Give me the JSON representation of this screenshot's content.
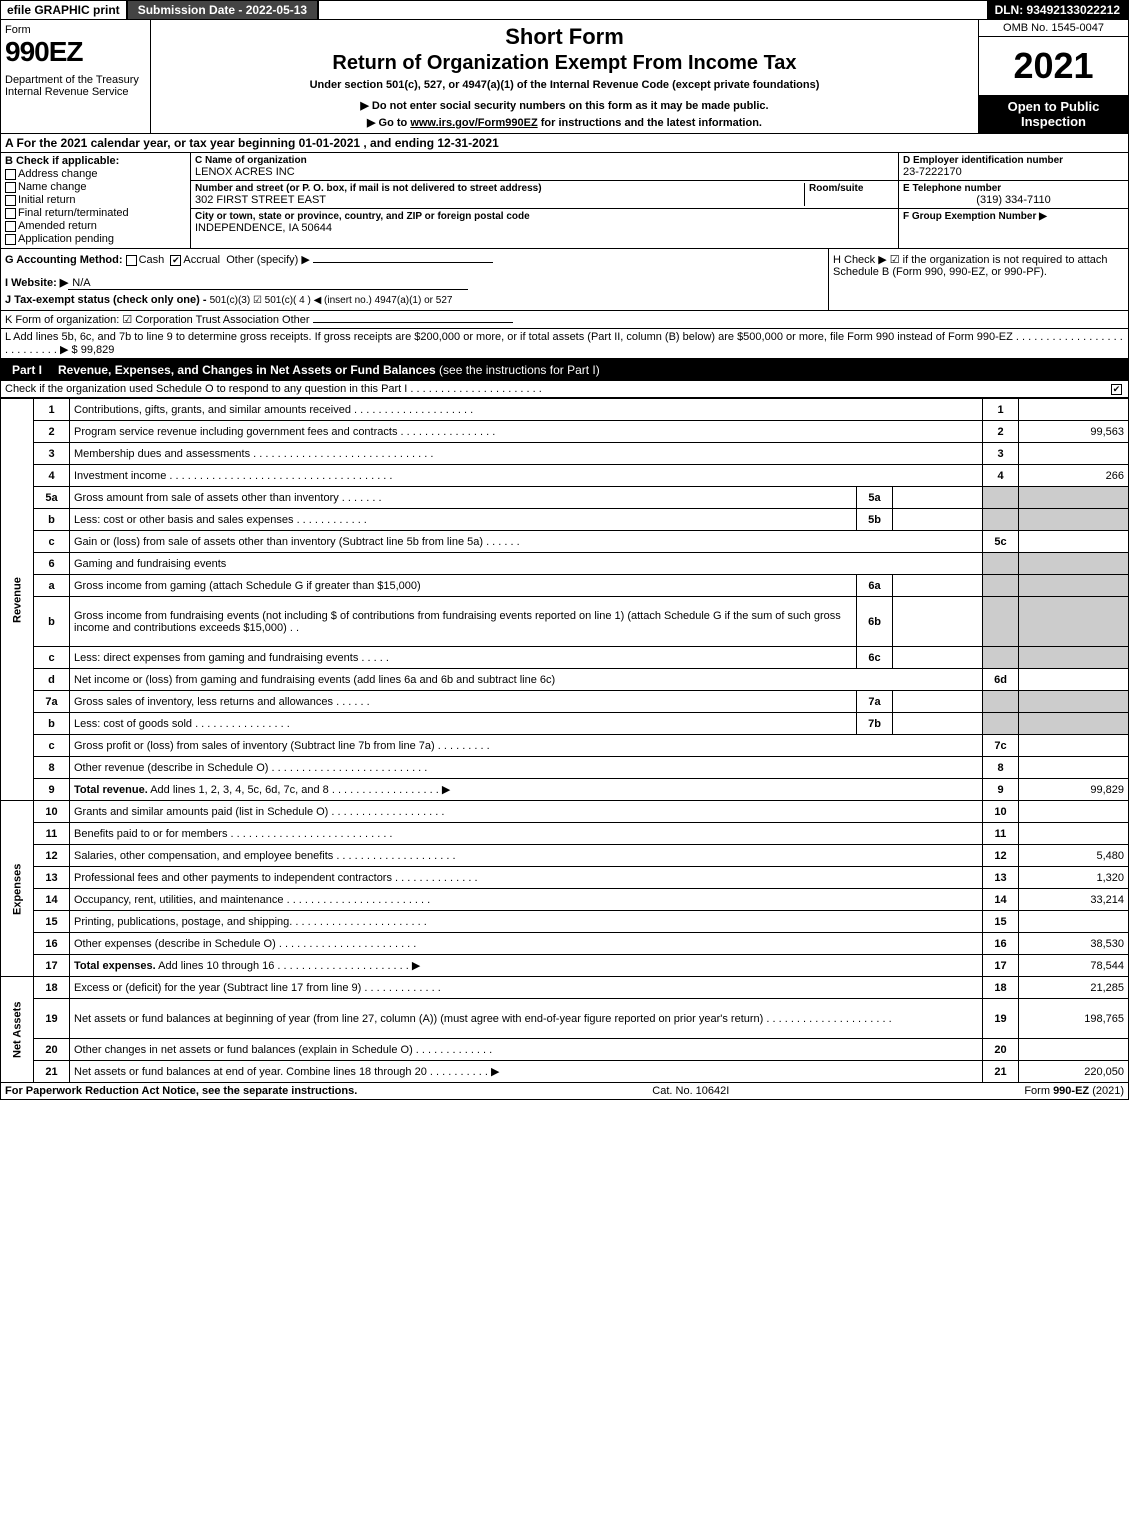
{
  "topbar": {
    "efile": "efile GRAPHIC print",
    "subdate": "Submission Date - 2022-05-13",
    "dln": "DLN: 93492133022212"
  },
  "header": {
    "form_label": "Form",
    "form_no": "990EZ",
    "dept": "Department of the Treasury\nInternal Revenue Service",
    "shortform": "Short Form",
    "title": "Return of Organization Exempt From Income Tax",
    "subtitle": "Under section 501(c), 527, or 4947(a)(1) of the Internal Revenue Code (except private foundations)",
    "note1": "▶ Do not enter social security numbers on this form as it may be made public.",
    "note2_pre": "▶ Go to ",
    "note2_link": "www.irs.gov/Form990EZ",
    "note2_post": " for instructions and the latest information.",
    "omb": "OMB No. 1545-0047",
    "year": "2021",
    "inspection": "Open to Public Inspection"
  },
  "section_a": "A  For the 2021 calendar year, or tax year beginning 01-01-2021 , and ending 12-31-2021",
  "b": {
    "head": "B  Check if applicable:",
    "items": [
      "Address change",
      "Name change",
      "Initial return",
      "Final return/terminated",
      "Amended return",
      "Application pending"
    ]
  },
  "c": {
    "name_lbl": "C Name of organization",
    "name": "LENOX ACRES INC",
    "street_lbl": "Number and street (or P. O. box, if mail is not delivered to street address)",
    "room_lbl": "Room/suite",
    "street": "302 FIRST STREET EAST",
    "city_lbl": "City or town, state or province, country, and ZIP or foreign postal code",
    "city": "INDEPENDENCE, IA  50644"
  },
  "d": {
    "ein_lbl": "D Employer identification number",
    "ein": "23-7222170",
    "tel_lbl": "E Telephone number",
    "tel": "(319) 334-7110",
    "grp_lbl": "F Group Exemption Number  ▶"
  },
  "g": {
    "acct_lbl": "G Accounting Method:",
    "cash": "Cash",
    "accrual": "Accrual",
    "other": "Other (specify) ▶",
    "website_lbl": "I Website: ▶",
    "website": "N/A",
    "j_lbl": "J Tax-exempt status (check only one) -",
    "j_opts": "501(c)(3)   ☑ 501(c)( 4 ) ◀ (insert no.)   4947(a)(1) or   527"
  },
  "h": {
    "text": "H  Check ▶  ☑  if the organization is not required to attach Schedule B (Form 990, 990-EZ, or 990-PF)."
  },
  "k": "K Form of organization:  ☑ Corporation   Trust   Association   Other",
  "l": {
    "text": "L Add lines 5b, 6c, and 7b to line 9 to determine gross receipts. If gross receipts are $200,000 or more, or if total assets (Part II, column (B) below) are $500,000 or more, file Form 990 instead of Form 990-EZ  . . . . . . . . . . . . . . . . . . . . . . . . . . .  ▶ $",
    "amount": "99,829"
  },
  "part1": {
    "label": "Part I",
    "title": "Revenue, Expenses, and Changes in Net Assets or Fund Balances",
    "note": "(see the instructions for Part I)",
    "sub": "Check if the organization used Schedule O to respond to any question in this Part I . . . . . . . . . . . . . . . . . . . . . ."
  },
  "sections": {
    "revenue": "Revenue",
    "expenses": "Expenses",
    "netassets": "Net Assets"
  },
  "rows": [
    {
      "n": "1",
      "d": "Contributions, gifts, grants, and similar amounts received  . . . . . . . . . . . . . . . . . . . .",
      "c": "1",
      "a": ""
    },
    {
      "n": "2",
      "d": "Program service revenue including government fees and contracts  . . . . . . . . . . . . . . . .",
      "c": "2",
      "a": "99,563"
    },
    {
      "n": "3",
      "d": "Membership dues and assessments  . . . . . . . . . . . . . . . . . . . . . . . . . . . . . .",
      "c": "3",
      "a": ""
    },
    {
      "n": "4",
      "d": "Investment income  . . . . . . . . . . . . . . . . . . . . . . . . . . . . . . . . . . . . .",
      "c": "4",
      "a": "266"
    },
    {
      "n": "5a",
      "d": "Gross amount from sale of assets other than inventory  . . . . . . .",
      "sn": "5a",
      "sv": "",
      "shaded": true
    },
    {
      "n": "b",
      "d": "Less: cost or other basis and sales expenses  . . . . . . . . . . . .",
      "sn": "5b",
      "sv": "",
      "shaded": true
    },
    {
      "n": "c",
      "d": "Gain or (loss) from sale of assets other than inventory (Subtract line 5b from line 5a)  . . . . . .",
      "c": "5c",
      "a": ""
    },
    {
      "n": "6",
      "d": "Gaming and fundraising events",
      "shaded": true,
      "noval": true
    },
    {
      "n": "a",
      "d": "Gross income from gaming (attach Schedule G if greater than $15,000)",
      "sn": "6a",
      "sv": "",
      "shaded": true
    },
    {
      "n": "b",
      "d": "Gross income from fundraising events (not including $                       of contributions from fundraising events reported on line 1) (attach Schedule G if the sum of such gross income and contributions exceeds $15,000)   . .",
      "sn": "6b",
      "sv": "",
      "shaded": true,
      "tall": true
    },
    {
      "n": "c",
      "d": "Less: direct expenses from gaming and fundraising events   . . . . .",
      "sn": "6c",
      "sv": "",
      "shaded": true
    },
    {
      "n": "d",
      "d": "Net income or (loss) from gaming and fundraising events (add lines 6a and 6b and subtract line 6c)",
      "c": "6d",
      "a": ""
    },
    {
      "n": "7a",
      "d": "Gross sales of inventory, less returns and allowances  . . . . . .",
      "sn": "7a",
      "sv": "",
      "shaded": true
    },
    {
      "n": "b",
      "d": "Less: cost of goods sold       . . . . . . . . . . . . . . . .",
      "sn": "7b",
      "sv": "",
      "shaded": true
    },
    {
      "n": "c",
      "d": "Gross profit or (loss) from sales of inventory (Subtract line 7b from line 7a)  . . . . . . . . .",
      "c": "7c",
      "a": ""
    },
    {
      "n": "8",
      "d": "Other revenue (describe in Schedule O)  . . . . . . . . . . . . . . . . . . . . . . . . . .",
      "c": "8",
      "a": ""
    },
    {
      "n": "9",
      "d": "Total revenue. Add lines 1, 2, 3, 4, 5c, 6d, 7c, and 8  . . . . . . . . . . . . . . . . . .  ▶",
      "c": "9",
      "a": "99,829",
      "bold": true
    }
  ],
  "exp_rows": [
    {
      "n": "10",
      "d": "Grants and similar amounts paid (list in Schedule O)  . . . . . . . . . . . . . . . . . . .",
      "c": "10",
      "a": ""
    },
    {
      "n": "11",
      "d": "Benefits paid to or for members     . . . . . . . . . . . . . . . . . . . . . . . . . . .",
      "c": "11",
      "a": ""
    },
    {
      "n": "12",
      "d": "Salaries, other compensation, and employee benefits . . . . . . . . . . . . . . . . . . . .",
      "c": "12",
      "a": "5,480"
    },
    {
      "n": "13",
      "d": "Professional fees and other payments to independent contractors  . . . . . . . . . . . . . .",
      "c": "13",
      "a": "1,320"
    },
    {
      "n": "14",
      "d": "Occupancy, rent, utilities, and maintenance . . . . . . . . . . . . . . . . . . . . . . . .",
      "c": "14",
      "a": "33,214"
    },
    {
      "n": "15",
      "d": "Printing, publications, postage, and shipping.  . . . . . . . . . . . . . . . . . . . . . .",
      "c": "15",
      "a": ""
    },
    {
      "n": "16",
      "d": "Other expenses (describe in Schedule O)     . . . . . . . . . . . . . . . . . . . . . . .",
      "c": "16",
      "a": "38,530"
    },
    {
      "n": "17",
      "d": "Total expenses. Add lines 10 through 16     . . . . . . . . . . . . . . . . . . . . . .  ▶",
      "c": "17",
      "a": "78,544",
      "bold": true
    }
  ],
  "net_rows": [
    {
      "n": "18",
      "d": "Excess or (deficit) for the year (Subtract line 17 from line 9)       . . . . . . . . . . . . .",
      "c": "18",
      "a": "21,285"
    },
    {
      "n": "19",
      "d": "Net assets or fund balances at beginning of year (from line 27, column (A)) (must agree with end-of-year figure reported on prior year's return) . . . . . . . . . . . . . . . . . . . . .",
      "c": "19",
      "a": "198,765",
      "tall": true
    },
    {
      "n": "20",
      "d": "Other changes in net assets or fund balances (explain in Schedule O) . . . . . . . . . . . . .",
      "c": "20",
      "a": ""
    },
    {
      "n": "21",
      "d": "Net assets or fund balances at end of year. Combine lines 18 through 20 . . . . . . . . . .  ▶",
      "c": "21",
      "a": "220,050"
    }
  ],
  "footer": {
    "left": "For Paperwork Reduction Act Notice, see the separate instructions.",
    "mid": "Cat. No. 10642I",
    "right_pre": "Form ",
    "right_bold": "990-EZ",
    "right_post": " (2021)"
  },
  "colors": {
    "black": "#000000",
    "gray_shade": "#cccccc",
    "darkbar": "#444444"
  }
}
